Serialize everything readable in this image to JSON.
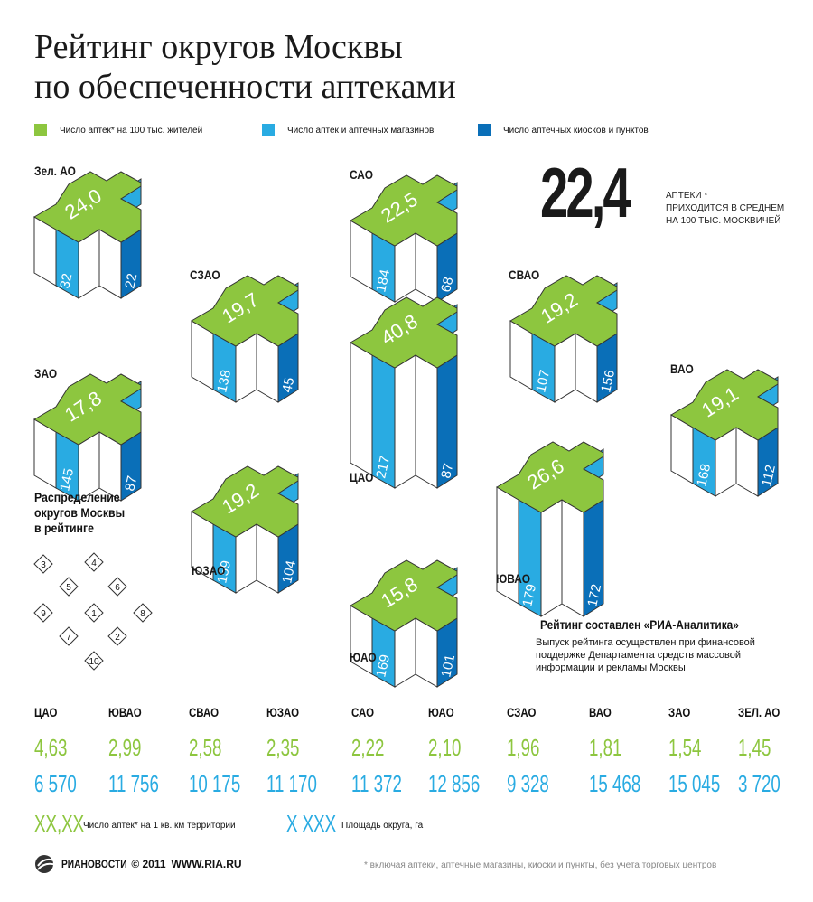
{
  "title_line1": "Рейтинг округов Москвы",
  "title_line2": "по обеспеченности аптеками",
  "legend": {
    "green": "Число аптек* на 100 тыс. жителей",
    "light_blue": "Число аптек и аптечных магазинов",
    "dark_blue": "Число аптечных киосков и пунктов"
  },
  "colors": {
    "green": "#8dc63f",
    "light_blue": "#29abe2",
    "dark_blue": "#0a6fb8"
  },
  "average": {
    "value": "22,4",
    "line1": "аптеки *",
    "line2": "приходится в среднем",
    "line3": "на 100 тыс. москвичей"
  },
  "chart_data": {
    "type": "bar",
    "categories": [
      "Зел. АО",
      "САО",
      "СЗАО",
      "СВАО",
      "ЦАО",
      "ЗАО",
      "ВАО",
      "ЮЗАО",
      "ЮВАО",
      "ЮАО"
    ],
    "series": [
      {
        "name": "Число аптек* на 100 тыс. жителей",
        "values": [
          "24,0",
          "22,5",
          "19,7",
          "19,2",
          "40,8",
          "17,8",
          "19,1",
          "19,2",
          "26,6",
          "15,8"
        ]
      },
      {
        "name": "Число аптек и аптечных магазинов",
        "values": [
          32,
          184,
          138,
          107,
          217,
          145,
          168,
          159,
          179,
          169
        ]
      },
      {
        "name": "Число аптечных киосков и пунктов",
        "values": [
          22,
          68,
          45,
          156,
          87,
          87,
          112,
          104,
          172,
          101
        ]
      }
    ]
  },
  "distribution": {
    "title_line1": "Распределение",
    "title_line2": "округов Москвы",
    "title_line3": "в рейтинге",
    "ranks": [
      "3",
      "4",
      "5",
      "6",
      "9",
      "1",
      "8",
      "7",
      "2",
      "10"
    ]
  },
  "credit": {
    "title": "Рейтинг составлен «РИА-Аналитика»",
    "line1": "Выпуск рейтинга осуществлен при финансовой",
    "line2": "поддержке Департамента средств массовой",
    "line3": "информации и рекламы Москвы"
  },
  "bottom_table": [
    {
      "name": "ЦАО",
      "density": "4,63",
      "area": "6 570"
    },
    {
      "name": "ЮВАО",
      "density": "2,99",
      "area": "11 756"
    },
    {
      "name": "СВАО",
      "density": "2,58",
      "area": "10 175"
    },
    {
      "name": "ЮЗАО",
      "density": "2,35",
      "area": "11 170"
    },
    {
      "name": "САО",
      "density": "2,22",
      "area": "11 372"
    },
    {
      "name": "ЮАО",
      "density": "2,10",
      "area": "12 856"
    },
    {
      "name": "СЗАО",
      "density": "1,96",
      "area": "9 328"
    },
    {
      "name": "ВАО",
      "density": "1,81",
      "area": "15 468"
    },
    {
      "name": "ЗАО",
      "density": "1,54",
      "area": "15 045"
    },
    {
      "name": "ЗЕЛ. АО",
      "density": "1,45",
      "area": "3 720"
    }
  ],
  "key": {
    "green_sample": "XX,XX",
    "green_text": "Число аптек* на 1 кв. км территории",
    "blue_sample": "X XXX",
    "blue_text": "Площадь округа, га"
  },
  "footer": {
    "logo": "РИАНОВОСТИ",
    "copyright": "© 2011",
    "site": "WWW.RIA.RU",
    "note": "* включая аптеки, аптечные магазины, киоски и пункты, без учета торговых центров"
  }
}
